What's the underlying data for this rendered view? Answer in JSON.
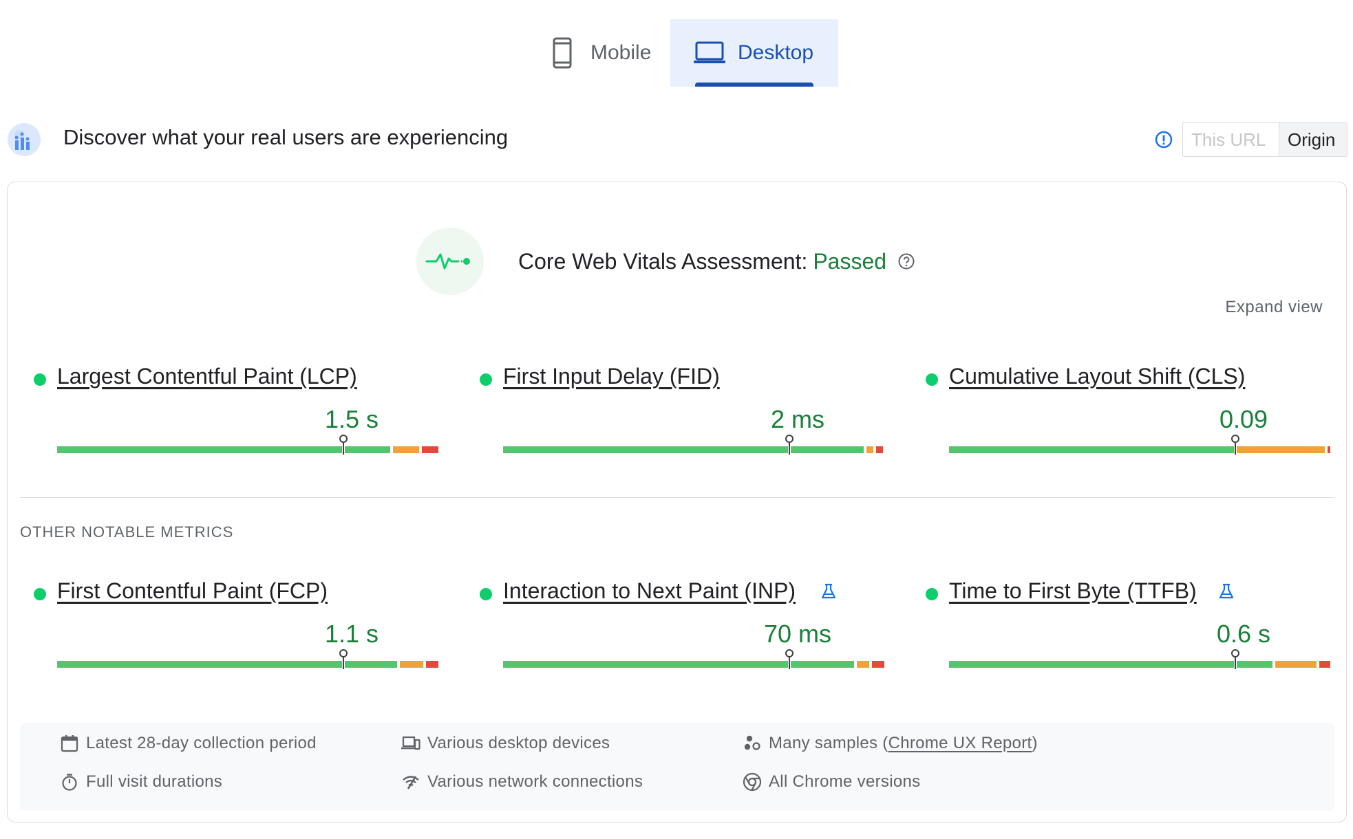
{
  "tabs": {
    "mobile": {
      "label": "Mobile",
      "icon": "phone-icon"
    },
    "desktop": {
      "label": "Desktop",
      "icon": "laptop-icon",
      "selected": true
    }
  },
  "header": {
    "title": "Discover what your real users are experiencing",
    "toggle": {
      "this_url": "This URL",
      "origin": "Origin",
      "selected": "Origin"
    }
  },
  "assessment": {
    "label": "Core Web Vitals Assessment:",
    "status": "Passed",
    "expand": "Expand view"
  },
  "core_metrics": [
    {
      "name": "Largest Contentful Paint (LCP)",
      "value": "1.5 s",
      "status": "good",
      "experimental": false
    },
    {
      "name": "First Input Delay (FID)",
      "value": "2 ms",
      "status": "good",
      "experimental": false
    },
    {
      "name": "Cumulative Layout Shift (CLS)",
      "value": "0.09",
      "status": "good",
      "experimental": false
    }
  ],
  "other_heading": "OTHER NOTABLE METRICS",
  "other_metrics": [
    {
      "name": "First Contentful Paint (FCP)",
      "value": "1.1 s",
      "status": "good",
      "experimental": false
    },
    {
      "name": "Interaction to Next Paint (INP)",
      "value": "70 ms",
      "status": "good",
      "experimental": true
    },
    {
      "name": "Time to First Byte (TTFB)",
      "value": "0.6 s",
      "status": "good",
      "experimental": true
    }
  ],
  "footer": {
    "period": "Latest 28-day collection period",
    "durations": "Full visit durations",
    "devices": "Various desktop devices",
    "network": "Various network connections",
    "samples_prefix": "Many samples (",
    "samples_link": "Chrome UX Report",
    "samples_suffix": ")",
    "versions": "All Chrome versions"
  },
  "colors": {
    "good": "#0cce6b",
    "good_bar": "#55c46c",
    "warn": "#f0a13a",
    "poor": "#e5493b",
    "pass_text": "#188038",
    "accent": "#1a4fb0"
  }
}
